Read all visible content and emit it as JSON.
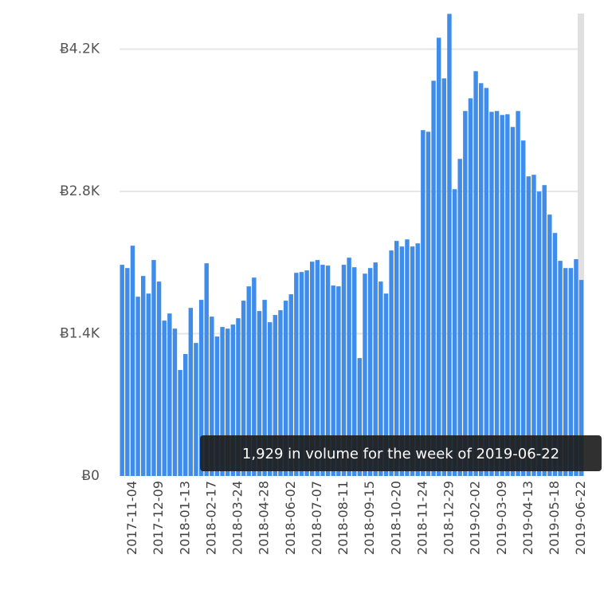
{
  "chart_data": {
    "type": "bar",
    "categories": [
      null,
      null,
      "2017-11-04",
      null,
      null,
      null,
      null,
      "2017-12-09",
      null,
      null,
      null,
      null,
      "2018-01-13",
      null,
      null,
      null,
      null,
      "2018-02-17",
      null,
      null,
      null,
      null,
      "2018-03-24",
      null,
      null,
      null,
      null,
      "2018-04-28",
      null,
      null,
      null,
      null,
      "2018-06-02",
      null,
      null,
      null,
      null,
      "2018-07-07",
      null,
      null,
      null,
      null,
      "2018-08-11",
      null,
      null,
      null,
      null,
      "2018-09-15",
      null,
      null,
      null,
      null,
      "2018-10-20",
      null,
      null,
      null,
      null,
      "2018-11-24",
      null,
      null,
      null,
      null,
      "2018-12-29",
      null,
      null,
      null,
      null,
      "2019-02-02",
      null,
      null,
      null,
      null,
      "2019-03-09",
      null,
      null,
      null,
      null,
      "2019-04-13",
      null,
      null,
      null,
      null,
      "2019-05-18",
      null,
      null,
      null,
      null,
      "2019-06-22"
    ],
    "values": [
      2078,
      2046,
      2266,
      1764,
      1968,
      1795,
      2125,
      1913,
      1529,
      1599,
      1450,
      1043,
      1200,
      1654,
      1309,
      1733,
      2093,
      1568,
      1372,
      1466,
      1450,
      1490,
      1552,
      1725,
      1866,
      1952,
      1623,
      1733,
      1513,
      1584,
      1631,
      1725,
      1788,
      1999,
      2007,
      2023,
      2109,
      2125,
      2078,
      2070,
      1874,
      1866,
      2078,
      2148,
      2054,
      1160,
      1991,
      2046,
      2101,
      1913,
      1795,
      2219,
      2313,
      2258,
      2328,
      2258,
      2289,
      3403,
      3387,
      3889,
      4312,
      3912,
      4547,
      2822,
      3120,
      3591,
      3716,
      3983,
      3865,
      3818,
      3583,
      3591,
      3552,
      3559,
      3434,
      3591,
      3301,
      2948,
      2964,
      2799,
      2862,
      2572,
      2391,
      2117,
      2046,
      2046,
      2133,
      1929
    ],
    "color": "#3f8ceb",
    "ylim": [
      0,
      4550
    ],
    "yticks": [
      {
        "value": 0,
        "label": "Ƀ0"
      },
      {
        "value": 1400,
        "label": "Ƀ1.4K"
      },
      {
        "value": 2800,
        "label": "Ƀ2.8K"
      },
      {
        "value": 4200,
        "label": "Ƀ4.2K"
      }
    ],
    "grid": true,
    "tooltip": "1,929 in volume for the week of 2019-06-22"
  }
}
